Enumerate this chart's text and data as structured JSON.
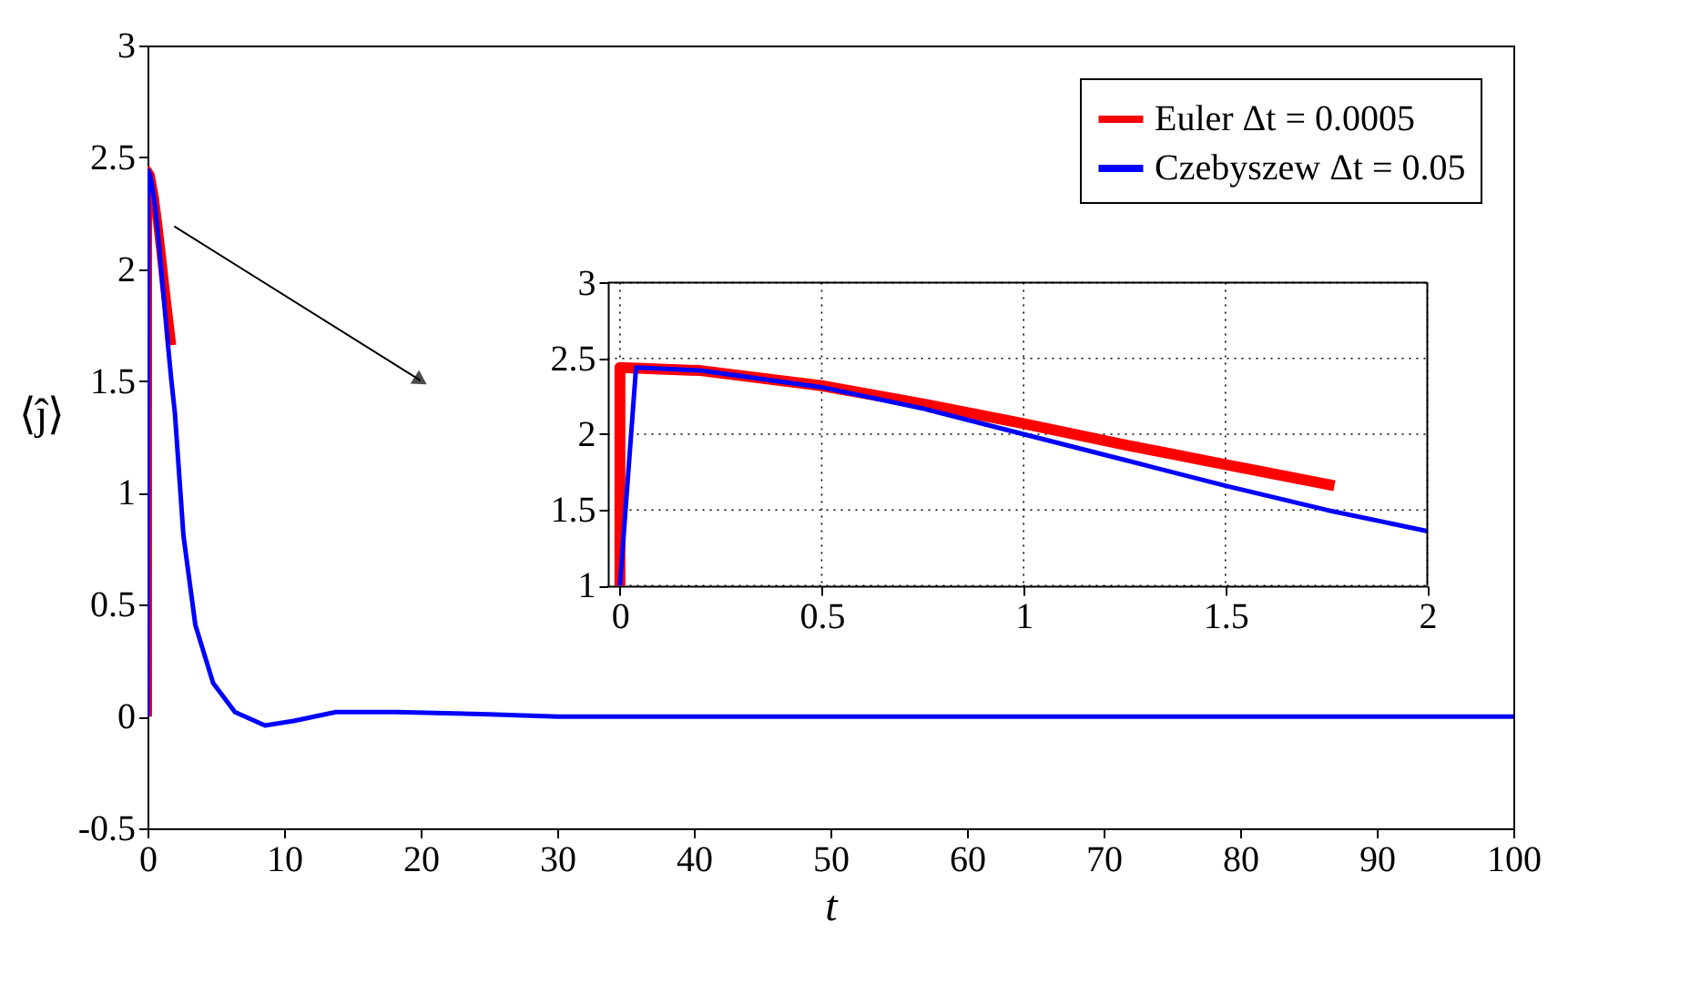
{
  "chart_data": [
    {
      "type": "line",
      "xlabel": "t",
      "ylabel": "⟨ĵ⟩",
      "xlim": [
        0,
        100
      ],
      "xticks": [
        0,
        10,
        20,
        30,
        40,
        50,
        60,
        70,
        80,
        90,
        100
      ],
      "ylim": [
        -0.5,
        3
      ],
      "yticks": [
        -0.5,
        0,
        0.5,
        1,
        1.5,
        2,
        2.5,
        3
      ],
      "grid": false,
      "legend": "top right",
      "series": [
        {
          "name": "Euler Δt = 0.0005",
          "color": "#ff0000",
          "x": [
            0,
            0,
            0.2,
            0.5,
            0.75,
            1,
            1.25,
            1.5,
            1.77
          ],
          "values": [
            0,
            2.44,
            2.42,
            2.32,
            2.2,
            2.07,
            1.93,
            1.8,
            1.66
          ]
        },
        {
          "name": "Czebyszew Δt = 0.05",
          "color": "#0000ff",
          "x": [
            0,
            0.05,
            0.2,
            0.5,
            0.75,
            1,
            1.25,
            1.5,
            1.75,
            2,
            2.63,
            3.5,
            4.8,
            6.4,
            8.6,
            10.7,
            13.8,
            18.2,
            25,
            30,
            40,
            50,
            60,
            70,
            80,
            90,
            100
          ],
          "values": [
            0,
            2.44,
            2.42,
            2.31,
            2.17,
            2.0,
            1.83,
            1.66,
            1.5,
            1.36,
            0.81,
            0.41,
            0.15,
            0.02,
            -0.04,
            -0.02,
            0.02,
            0.02,
            0.01,
            0,
            0,
            0,
            0,
            0,
            0,
            0,
            0
          ]
        }
      ]
    },
    {
      "type": "line",
      "xlim": [
        -0.03,
        2
      ],
      "xticks": [
        0,
        0.5,
        1,
        1.5,
        2
      ],
      "ylim": [
        1,
        3
      ],
      "yticks": [
        1,
        1.5,
        2,
        2.5,
        3
      ],
      "grid": true,
      "series": [
        {
          "color": "#ff0000",
          "x": [
            0,
            0,
            0.2,
            0.5,
            0.75,
            1,
            1.25,
            1.5,
            1.77
          ],
          "values": [
            1,
            2.44,
            2.42,
            2.32,
            2.2,
            2.07,
            1.93,
            1.8,
            1.66
          ]
        },
        {
          "color": "#0000ff",
          "x": [
            0,
            0.04,
            0.2,
            0.5,
            0.75,
            1,
            1.25,
            1.5,
            1.75,
            2
          ],
          "values": [
            1,
            2.44,
            2.42,
            2.31,
            2.17,
            2.0,
            1.83,
            1.66,
            1.5,
            1.36
          ]
        }
      ]
    }
  ]
}
